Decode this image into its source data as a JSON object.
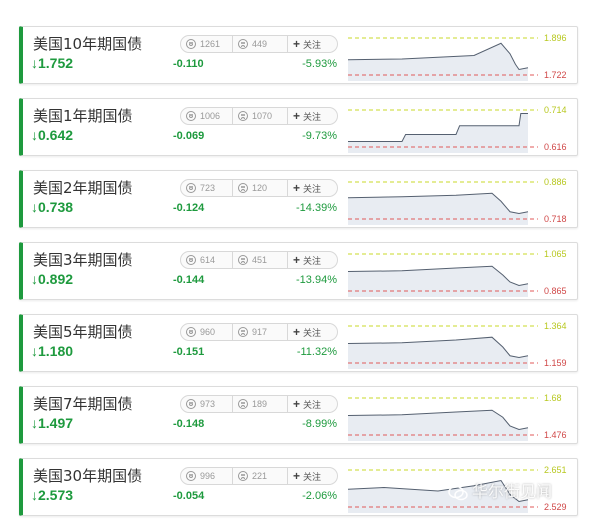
{
  "colors": {
    "accent": "#1e9a3e",
    "high_line": "#c8d82a",
    "low_line": "#e05a5a",
    "high_text": "#b8c820",
    "low_text": "#d04848",
    "chart_fill": "#e8ecf2",
    "chart_line": "#556070"
  },
  "icons": {
    "direction": "down-arrow-icon",
    "upvote": "smile-icon",
    "downvote": "frown-icon",
    "follow": "plus-icon"
  },
  "follow_label": "关注",
  "watermark": "华尔街见闻",
  "bonds": [
    {
      "name": "美国10年期国债",
      "arrow": "↓",
      "price": "1.752",
      "change": "-0.110",
      "pct": "-5.93%",
      "up": "1261",
      "down": "449",
      "high": "1.896",
      "low": "1.722"
    },
    {
      "name": "美国1年期国债",
      "arrow": "↓",
      "price": "0.642",
      "change": "-0.069",
      "pct": "-9.73%",
      "up": "1006",
      "down": "1070",
      "high": "0.714",
      "low": "0.616"
    },
    {
      "name": "美国2年期国债",
      "arrow": "↓",
      "price": "0.738",
      "change": "-0.124",
      "pct": "-14.39%",
      "up": "723",
      "down": "120",
      "high": "0.886",
      "low": "0.718"
    },
    {
      "name": "美国3年期国债",
      "arrow": "↓",
      "price": "0.892",
      "change": "-0.144",
      "pct": "-13.94%",
      "up": "614",
      "down": "451",
      "high": "1.065",
      "low": "0.865"
    },
    {
      "name": "美国5年期国债",
      "arrow": "↓",
      "price": "1.180",
      "change": "-0.151",
      "pct": "-11.32%",
      "up": "960",
      "down": "917",
      "high": "1.364",
      "low": "1.159"
    },
    {
      "name": "美国7年期国债",
      "arrow": "↓",
      "price": "1.497",
      "change": "-0.148",
      "pct": "-8.99%",
      "up": "973",
      "down": "189",
      "high": "1.68",
      "low": "1.476"
    },
    {
      "name": "美国30年期国债",
      "arrow": "↓",
      "price": "2.573",
      "change": "-0.054",
      "pct": "-2.06%",
      "up": "996",
      "down": "221",
      "high": "2.651",
      "low": "2.529"
    }
  ]
}
